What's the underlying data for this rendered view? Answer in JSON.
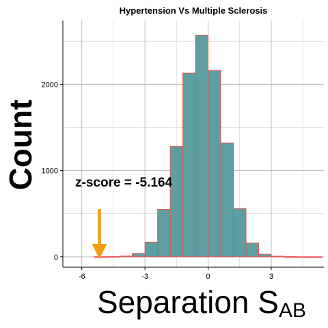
{
  "chart_data": {
    "type": "bar",
    "title": "Hypertension Vs Multiple Sclerosis",
    "xlabel": "Separation S",
    "xlabel_subscript": "AB",
    "ylabel": "Count",
    "xlim": [
      -6.9,
      5.5
    ],
    "ylim": [
      -120,
      2740
    ],
    "x_ticks": [
      -6,
      -3,
      0,
      3
    ],
    "x_tick_labels": [
      "-6",
      "-3",
      "0",
      "3"
    ],
    "y_ticks": [
      0,
      1000,
      2000
    ],
    "y_tick_labels": [
      "0",
      "1000",
      "2000"
    ],
    "grid": true,
    "bin_width": 0.6,
    "bins": [
      {
        "x_start": -5.4,
        "x_end": -4.8,
        "count": 2
      },
      {
        "x_start": -4.8,
        "x_end": -4.2,
        "count": 4
      },
      {
        "x_start": -4.2,
        "x_end": -3.6,
        "count": 10
      },
      {
        "x_start": -3.6,
        "x_end": -3.0,
        "count": 40
      },
      {
        "x_start": -3.0,
        "x_end": -2.4,
        "count": 170
      },
      {
        "x_start": -2.4,
        "x_end": -1.8,
        "count": 550
      },
      {
        "x_start": -1.8,
        "x_end": -1.2,
        "count": 1280
      },
      {
        "x_start": -1.2,
        "x_end": -0.6,
        "count": 2130
      },
      {
        "x_start": -0.6,
        "x_end": 0.0,
        "count": 2570
      },
      {
        "x_start": 0.0,
        "x_end": 0.6,
        "count": 2160
      },
      {
        "x_start": 0.6,
        "x_end": 1.2,
        "count": 1320
      },
      {
        "x_start": 1.2,
        "x_end": 1.8,
        "count": 560
      },
      {
        "x_start": 1.8,
        "x_end": 2.4,
        "count": 160
      },
      {
        "x_start": 2.4,
        "x_end": 3.0,
        "count": 30
      },
      {
        "x_start": 3.0,
        "x_end": 3.6,
        "count": 8
      },
      {
        "x_start": 3.6,
        "x_end": 4.2,
        "count": 3
      },
      {
        "x_start": 4.2,
        "x_end": 4.8,
        "count": 1
      },
      {
        "x_start": 4.8,
        "x_end": 5.4,
        "count": 1
      }
    ],
    "annotation": {
      "text": "z-score = -5.164",
      "arrow_x": -5.164
    },
    "colors": {
      "bar_fill": "#5f9ea0",
      "bar_stroke": "#e8534f",
      "arrow": "#f39c12",
      "grid": "#c8c8c8"
    }
  }
}
